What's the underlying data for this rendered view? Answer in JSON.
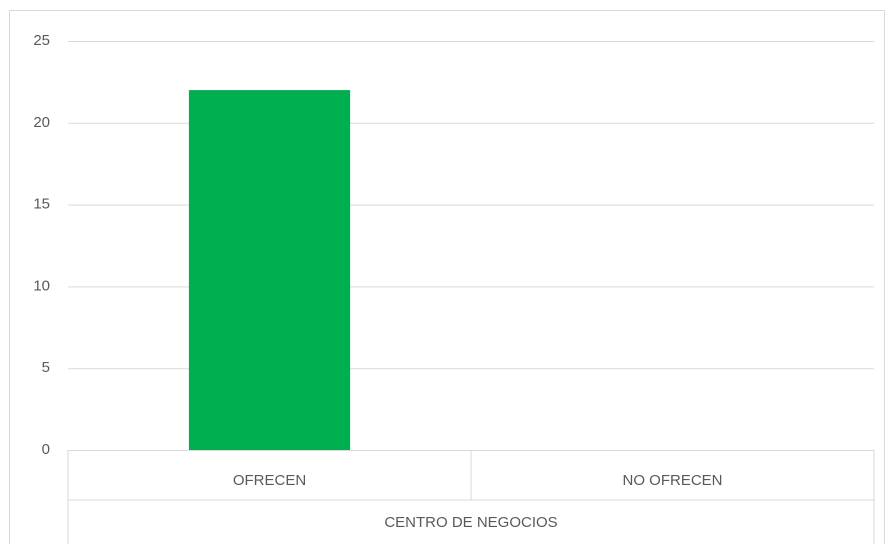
{
  "chart_data": {
    "type": "bar",
    "categories": [
      "OFRECEN",
      "NO OFRECEN"
    ],
    "values": [
      22,
      0
    ],
    "color": "#00b050",
    "category_group": "CENTRO DE NEGOCIOS",
    "ylim": [
      0,
      25
    ],
    "yticks": [
      0,
      5,
      10,
      15,
      20,
      25
    ],
    "grid": true
  }
}
